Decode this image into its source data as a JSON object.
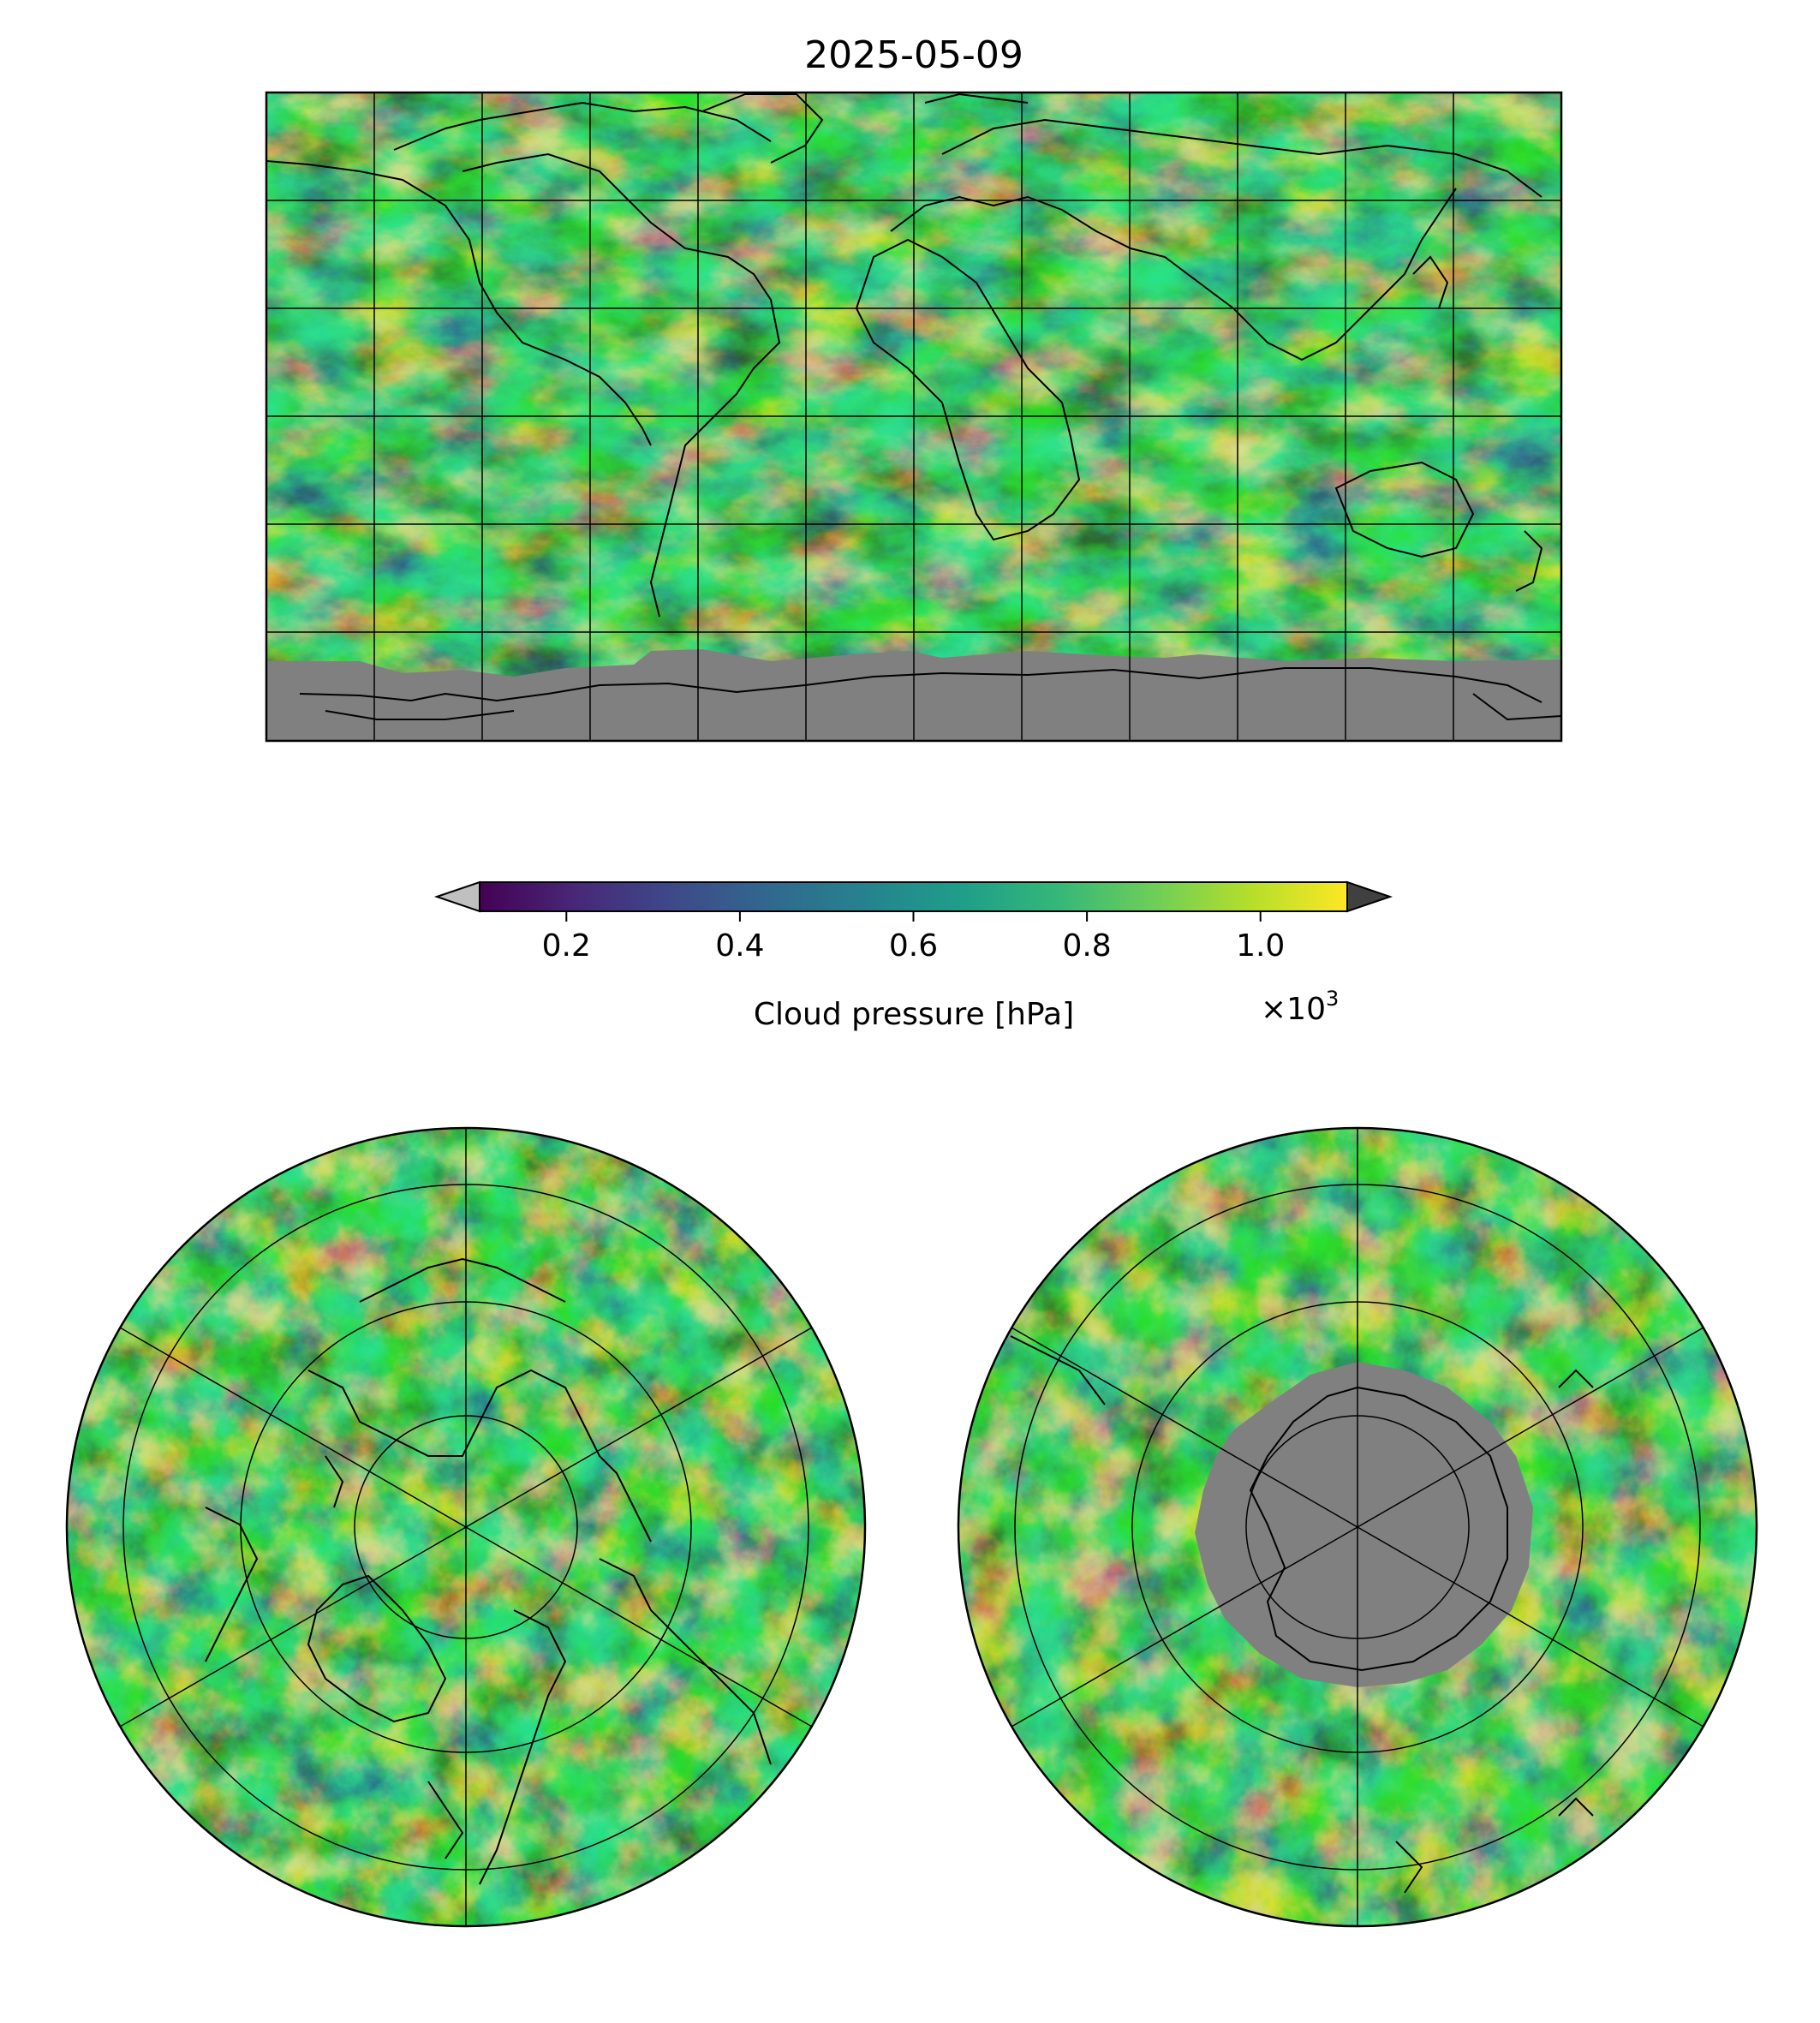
{
  "title": "2025-05-09",
  "colorbar": {
    "label": "Cloud pressure [hPa]",
    "multiplier": "×10",
    "multiplier_exponent": "3",
    "ticks": [
      "0.2",
      "0.4",
      "0.6",
      "0.8",
      "1.0"
    ],
    "tick_values": [
      0.2,
      0.4,
      0.6,
      0.8,
      1.0
    ],
    "range": [
      0.1,
      1.1
    ],
    "colormap": "viridis",
    "colormap_stops": [
      "#440154",
      "#482878",
      "#3e4989",
      "#31688e",
      "#26828e",
      "#1f9e89",
      "#35b779",
      "#6ece58",
      "#b5de2b",
      "#fde725"
    ],
    "under_color": "#c0c0c0",
    "over_color": "#404040",
    "nodata_color": "#808080"
  },
  "maps": [
    {
      "projection": "Plate Carrée (global)",
      "gridlines": "every 30°"
    },
    {
      "projection": "North Polar Stereographic",
      "gridlines": "parallels every 20°, meridians every 60°"
    },
    {
      "projection": "South Polar Stereographic",
      "gridlines": "parallels every 20°, meridians every 60°"
    }
  ]
}
